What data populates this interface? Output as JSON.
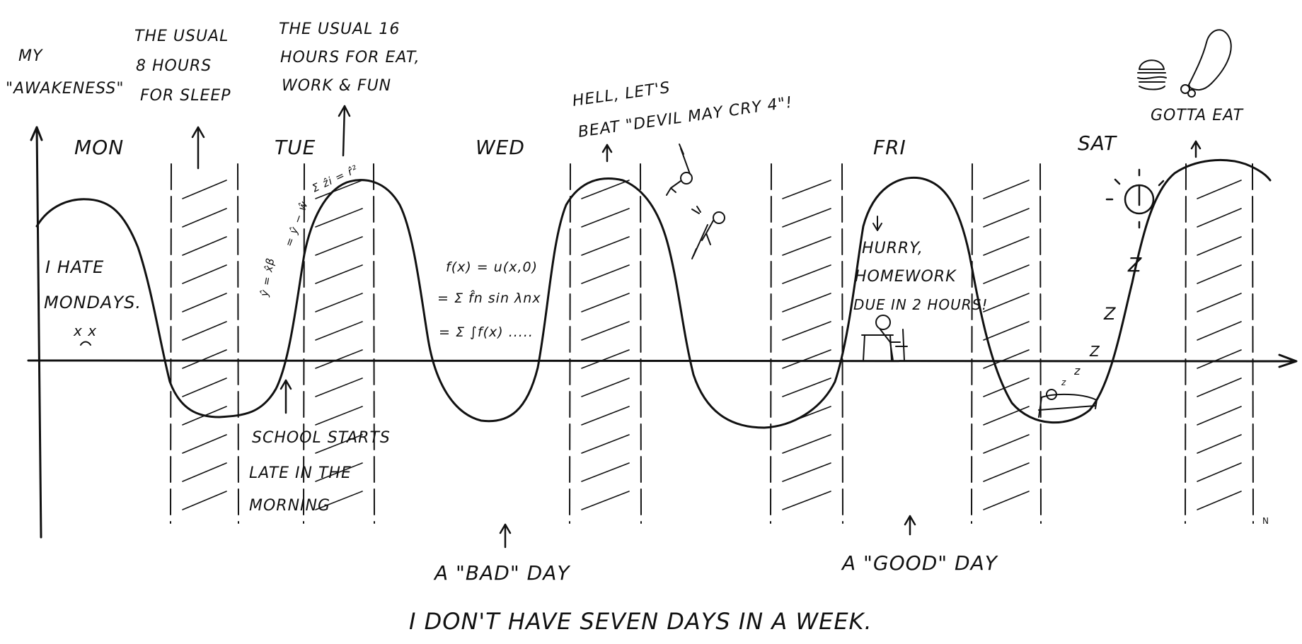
{
  "axis": {
    "y_label": [
      "MY",
      "\"AWAKENESS\""
    ],
    "x_end_label": "N"
  },
  "days": [
    "MON",
    "TUE",
    "WED",
    "FRI",
    "SAT"
  ],
  "top_notes": {
    "sleep": [
      "THE USUAL",
      "8 HOURS",
      "FOR SLEEP"
    ],
    "awake": [
      "THE USUAL 16",
      "HOURS FOR EAT,",
      "WORK & FUN"
    ],
    "game": [
      "HELL, LET'S",
      "BEAT \"DEVIL MAY CRY 4\"!"
    ],
    "eat": "GOTTA EAT"
  },
  "notes": {
    "monday": [
      "I HATE",
      "MONDAYS."
    ],
    "monday_face": "x x",
    "school": [
      "SCHOOL STARTS",
      "LATE IN THE",
      "MORNING"
    ],
    "wed_math": [
      "f(x) = u(x,0)",
      "= Σ f̂n sin λnx",
      "= Σ ∫f(x) ....."
    ],
    "tue_math": [
      "ŷ = x̂β",
      "= ŷ − ŵ",
      "Σ ẑi = r̂²"
    ],
    "homework": [
      "HURRY,",
      "HOMEWORK",
      "DUE IN 2 HOURS!"
    ],
    "zzz": [
      "Z",
      "Z",
      "Z",
      "z",
      "z"
    ]
  },
  "bottom": {
    "bad_day": "A \"BAD\" DAY",
    "good_day": "A \"GOOD\" DAY",
    "caption": "I DON'T HAVE SEVEN DAYS IN A WEEK."
  },
  "colors": {
    "ink": "#111111",
    "paper": "#ffffff"
  }
}
